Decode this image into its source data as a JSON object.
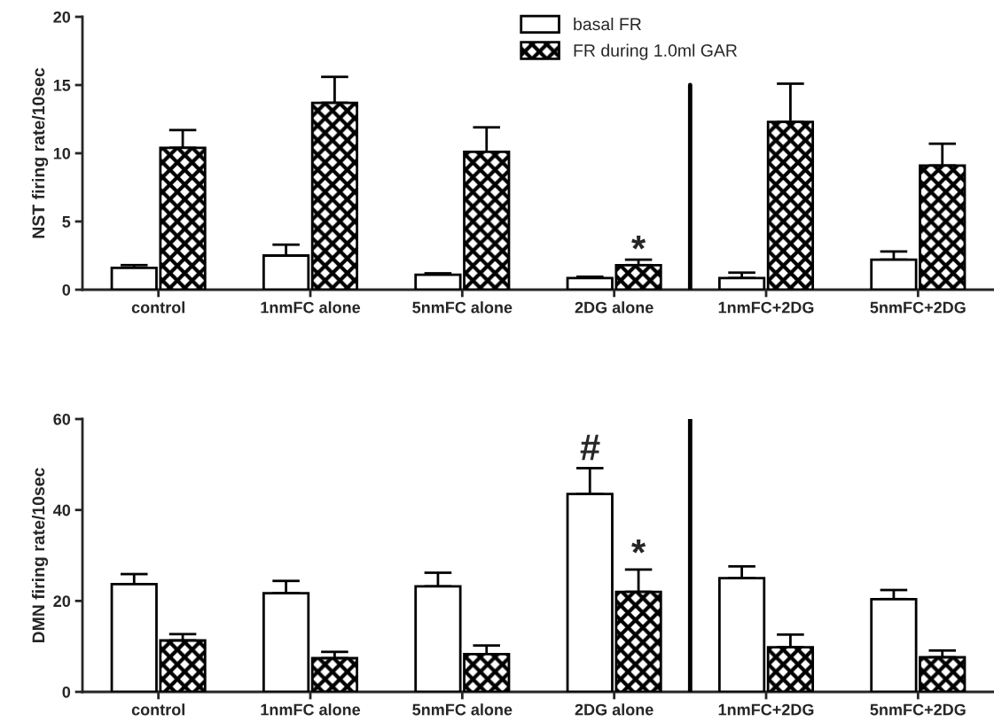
{
  "chart_data": [
    {
      "type": "bar",
      "ylabel": "NST firing rate/10sec",
      "categories": [
        "control",
        "1nmFC alone",
        "5nmFC alone",
        "2DG alone",
        "1nmFC+2DG",
        "5nmFC+2DG"
      ],
      "series": [
        {
          "name": "basal FR",
          "color": "#ffffff",
          "values": [
            1.6,
            2.5,
            1.1,
            0.85,
            0.85,
            2.2
          ],
          "errors": [
            0.2,
            0.8,
            0.1,
            0.1,
            0.4,
            0.6
          ]
        },
        {
          "name": "FR during 1.0ml GAR",
          "color": "#000000",
          "values": [
            10.4,
            13.7,
            10.1,
            1.8,
            12.3,
            9.1
          ],
          "errors": [
            1.3,
            1.9,
            1.8,
            0.4,
            2.8,
            1.6
          ]
        }
      ],
      "ylim": [
        0,
        20
      ],
      "yticks": [
        0,
        5,
        10,
        15,
        20
      ],
      "grid": false,
      "legend": "top",
      "annotations": [
        "*"
      ]
    },
    {
      "type": "bar",
      "ylabel": "DMN firing rate/10sec",
      "categories": [
        "control",
        "1nmFC alone",
        "5nmFC alone",
        "2DG alone",
        "1nmFC+2DG",
        "5nmFC+2DG"
      ],
      "series": [
        {
          "color": "#ffffff",
          "values": [
            23.7,
            21.7,
            23.2,
            43.5,
            25.0,
            20.4
          ],
          "errors": [
            2.2,
            2.7,
            3.0,
            5.7,
            2.6,
            2.0
          ]
        },
        {
          "color": "#000000",
          "values": [
            11.3,
            7.4,
            8.3,
            22.0,
            9.8,
            7.6
          ],
          "errors": [
            1.4,
            1.4,
            1.9,
            4.9,
            2.8,
            1.5
          ]
        }
      ],
      "ylim": [
        0,
        60
      ],
      "yticks": [
        0,
        20,
        40,
        60
      ],
      "grid": false,
      "legend": false,
      "annotations": [
        "#",
        "*"
      ]
    }
  ]
}
